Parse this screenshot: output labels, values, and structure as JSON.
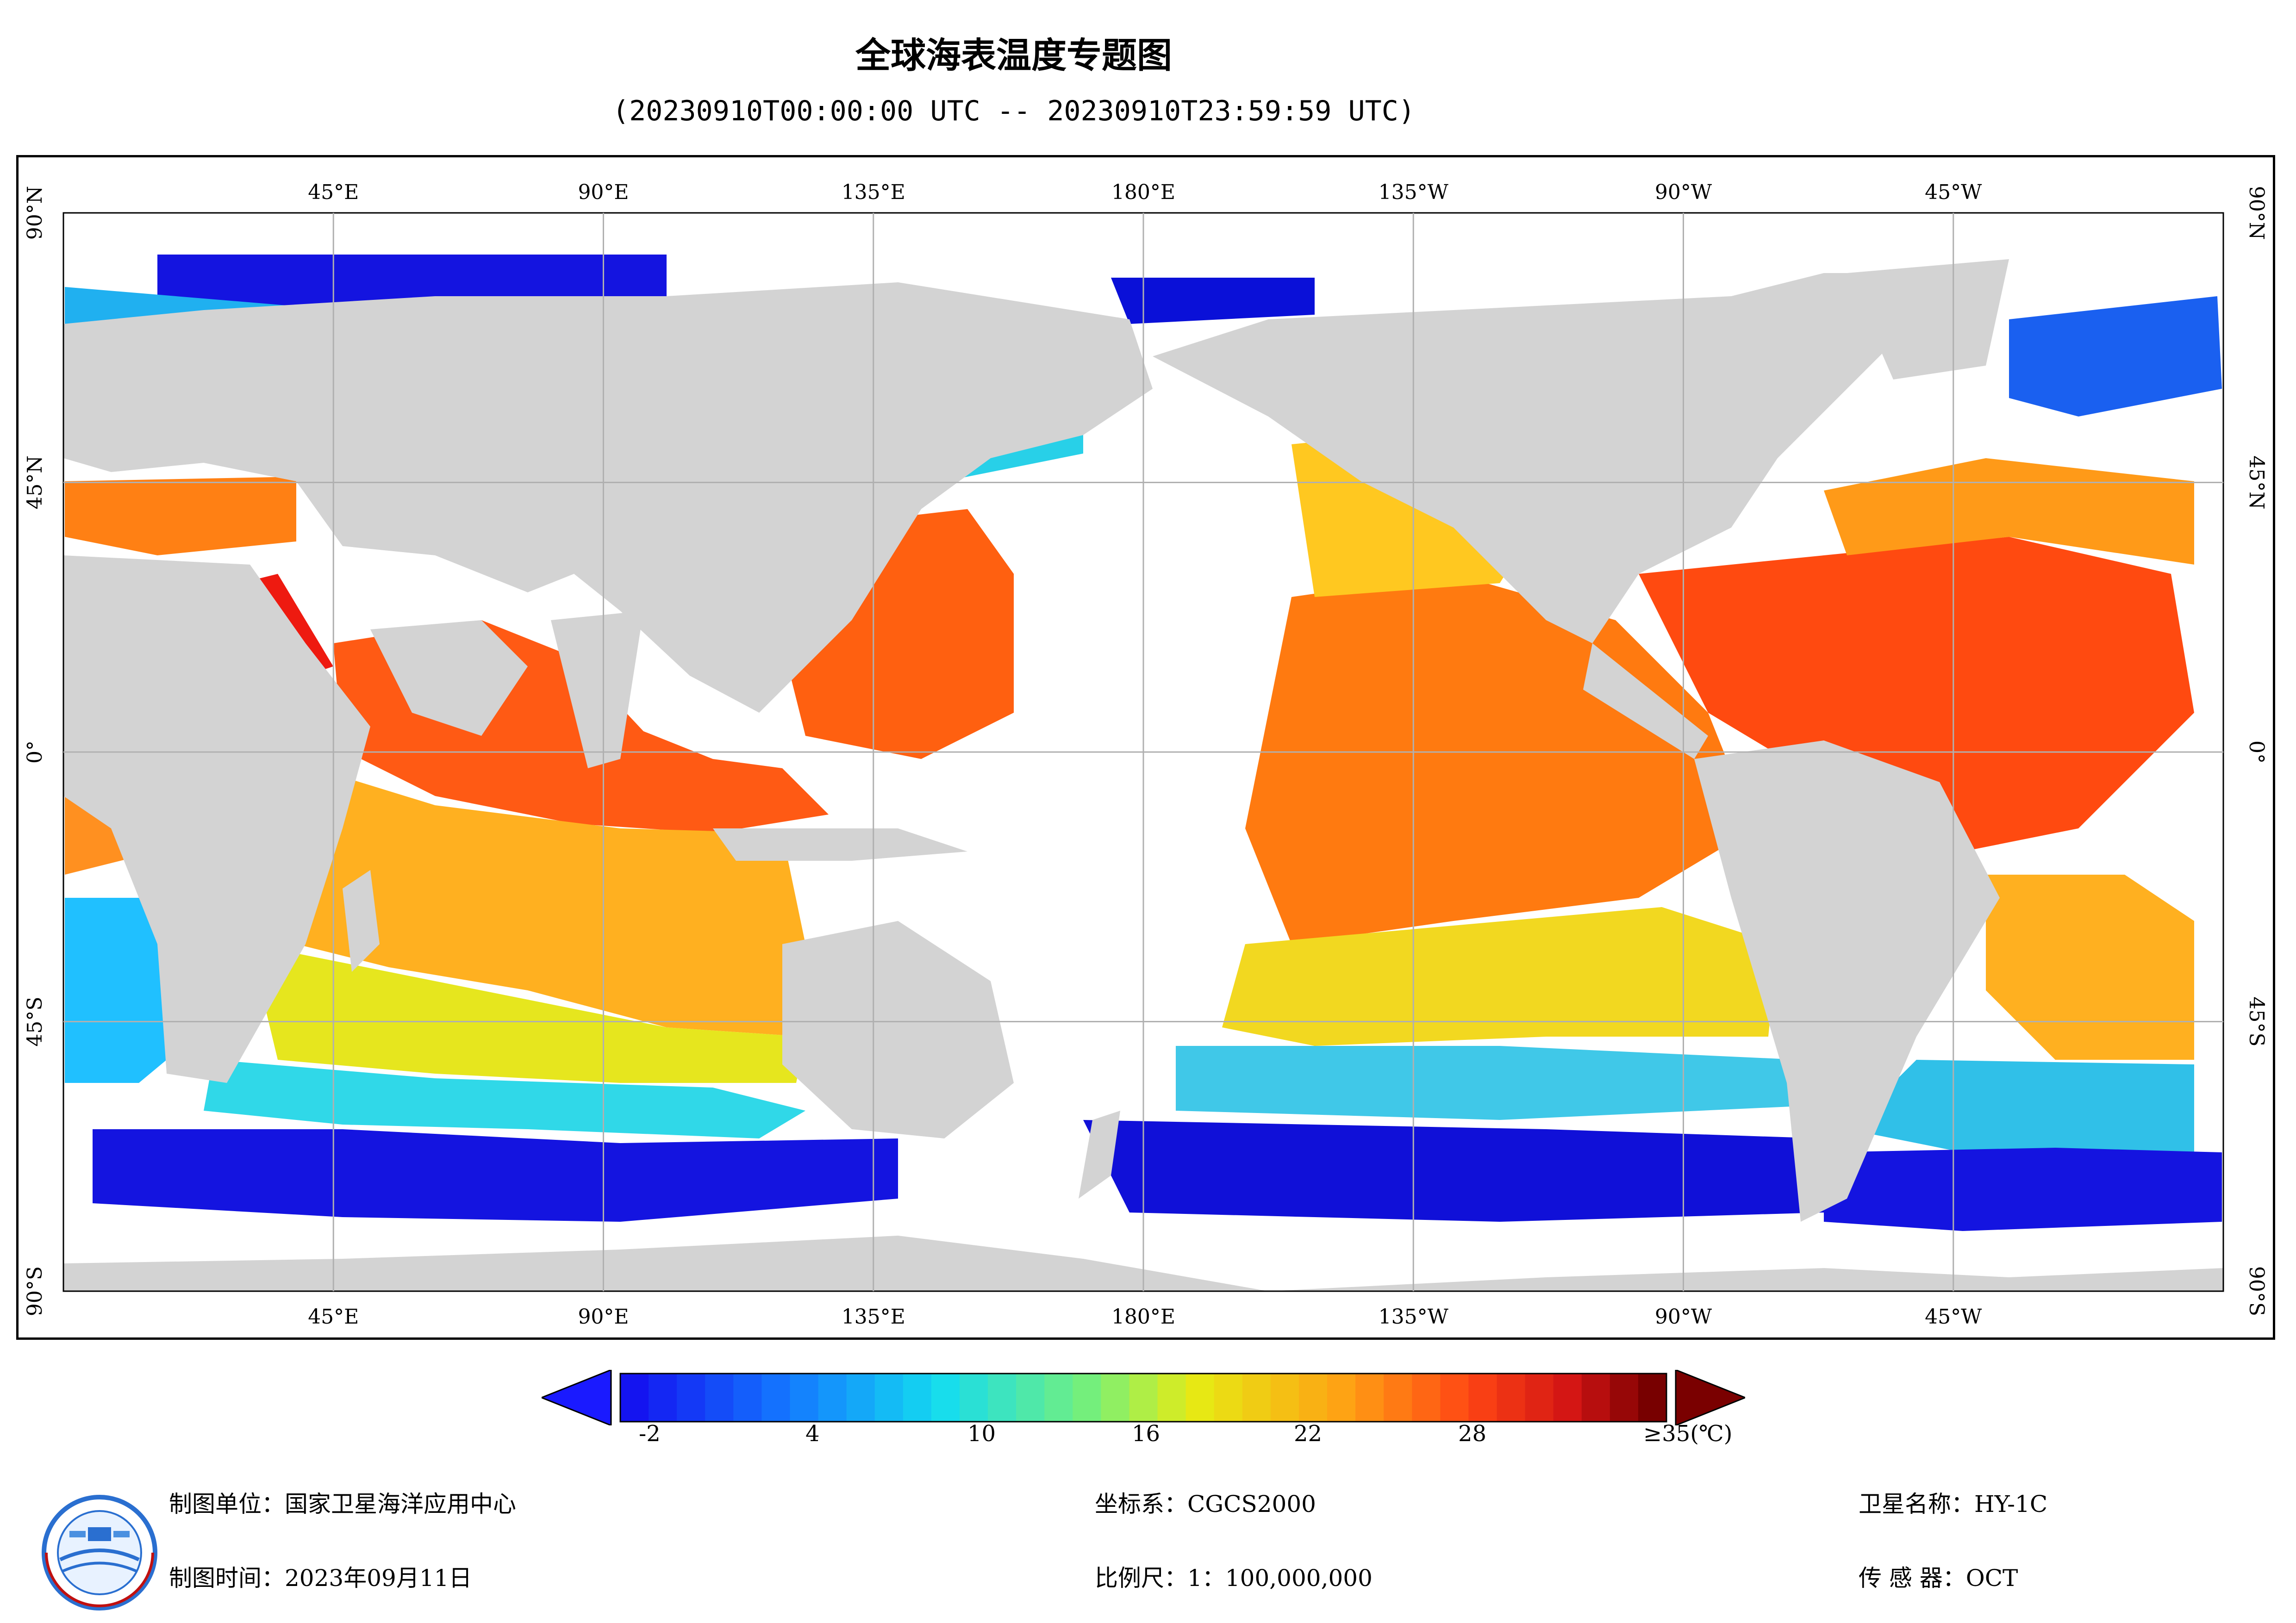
{
  "title": "全球海表温度专题图",
  "subtitle": "(20230910T00:00:00 UTC -- 20230910T23:59:59 UTC)",
  "graticule": {
    "top_labels": [
      "45°E",
      "90°E",
      "135°E",
      "180°E",
      "135°W",
      "90°W",
      "45°W"
    ],
    "bottom_labels": [
      "45°E",
      "90°E",
      "135°E",
      "180°E",
      "135°W",
      "90°W",
      "45°W"
    ],
    "left_labels": [
      "90°N",
      "45°N",
      "0°",
      "45°S",
      "90°S"
    ],
    "right_labels": [
      "90°N",
      "45°N",
      "0°",
      "45°S",
      "90°S"
    ]
  },
  "colorbar": {
    "tick_labels": [
      "-2",
      "4",
      "10",
      "16",
      "22",
      "28",
      "≥35(℃)"
    ],
    "min_arrow_color": "#1a1aff",
    "max_arrow_color": "#7a0000"
  },
  "colors": {
    "land": "#d3d3d3",
    "grid": "#b0b0b0",
    "cold": "#1010e0",
    "cool": "#20c8f0",
    "mild": "#f0f020",
    "warm": "#ff8c10",
    "hot": "#ff3a10"
  },
  "footer": {
    "org_label": "制图单位：",
    "org_value": "国家卫星海洋应用中心",
    "time_label": "制图时间：",
    "time_value": "2023年09月11日",
    "crs_label": "坐标系：",
    "crs_value": "CGCS2000",
    "scale_label": "比例尺：",
    "scale_value": "1：100,000,000",
    "sat_label": "卫星名称：",
    "sat_value": "HY-1C",
    "sensor_label": "传 感 器：",
    "sensor_value": "OCT"
  },
  "logo_icon": "nsoas-logo-icon"
}
